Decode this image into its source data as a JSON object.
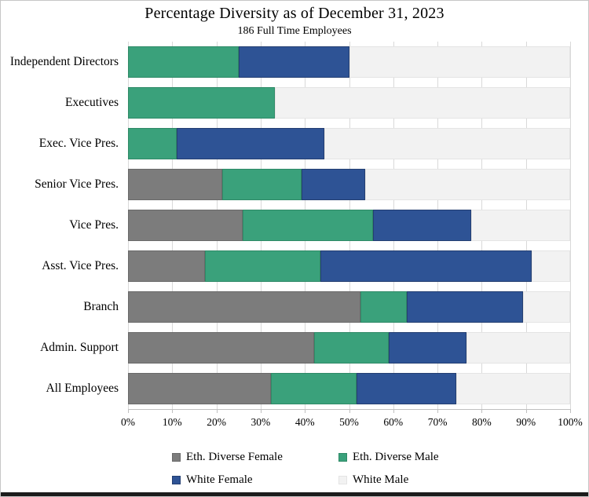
{
  "chart_data": {
    "type": "bar",
    "orientation": "horizontal-stacked",
    "title": "Percentage Diversity as of December 31, 2023",
    "subtitle": "186 Full Time Employees",
    "categories": [
      "Independent Directors",
      "Executives",
      "Exec. Vice Pres.",
      "Senior Vice Pres.",
      "Vice Pres.",
      "Asst. Vice Pres.",
      "Branch",
      "Admin. Support",
      "All Employees"
    ],
    "series": [
      {
        "name": "Eth. Diverse Female",
        "color": "#7C7C7C",
        "border_color": "#6A6A6A",
        "values": [
          0,
          0,
          0,
          21.4,
          25.9,
          17.4,
          52.6,
          42.1,
          32.3
        ]
      },
      {
        "name": "Eth. Diverse Male",
        "color": "#3AA17B",
        "border_color": "#2F8A67",
        "values": [
          25.0,
          33.3,
          11.1,
          17.9,
          29.6,
          26.1,
          10.5,
          16.8,
          19.3
        ]
      },
      {
        "name": "White Female",
        "color": "#2E5395",
        "border_color": "#243F72",
        "values": [
          25.0,
          0,
          33.3,
          14.3,
          22.2,
          47.8,
          26.3,
          17.7,
          22.6
        ]
      },
      {
        "name": "White Male",
        "color": "#F2F2F2",
        "border_color": "#E4E4E4",
        "values": [
          50.0,
          66.7,
          55.6,
          46.4,
          22.3,
          8.7,
          10.6,
          23.4,
          25.8
        ]
      }
    ],
    "x_ticks": [
      "0%",
      "10%",
      "20%",
      "30%",
      "40%",
      "50%",
      "60%",
      "70%",
      "80%",
      "90%",
      "100%"
    ],
    "xlim": [
      0,
      100
    ],
    "grid": true,
    "gridline_color": "#d9d9d9",
    "legend_position": "bottom"
  }
}
